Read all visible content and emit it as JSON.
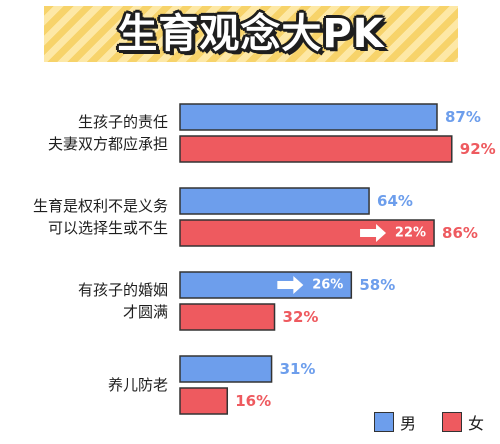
{
  "title": "生育观念大PK",
  "colors": {
    "male": "#6d9eec",
    "female": "#ee5a5f",
    "male_text": "#6d9eec",
    "female_text": "#ee5a5f",
    "border": "#333333"
  },
  "legend": [
    {
      "name": "男",
      "color": "#6d9eec"
    },
    {
      "name": "女",
      "color": "#ee5a5f"
    }
  ],
  "chart_data": {
    "type": "bar",
    "orientation": "horizontal",
    "title": "生育观念大PK",
    "xlim": [
      0,
      100
    ],
    "grid": false,
    "legend_position": "bottom-right",
    "categories": [
      [
        "生孩子的责任",
        "夫妻双方都应承担"
      ],
      [
        "生育是权利不是义务",
        "可以选择生或不生"
      ],
      [
        "有孩子的婚姻",
        "才圆满"
      ],
      [
        "养儿防老"
      ]
    ],
    "series": [
      {
        "name": "男",
        "values": [
          87,
          64,
          58,
          31
        ],
        "labels": [
          "87%",
          "64%",
          "58%",
          "31%"
        ]
      },
      {
        "name": "女",
        "values": [
          92,
          86,
          32,
          16
        ],
        "labels": [
          "92%",
          "86%",
          "32%",
          "16%"
        ]
      }
    ],
    "annotations": [
      {
        "category_index": 1,
        "series": "女",
        "text": "22%"
      },
      {
        "category_index": 2,
        "series": "男",
        "text": "26%"
      }
    ]
  }
}
